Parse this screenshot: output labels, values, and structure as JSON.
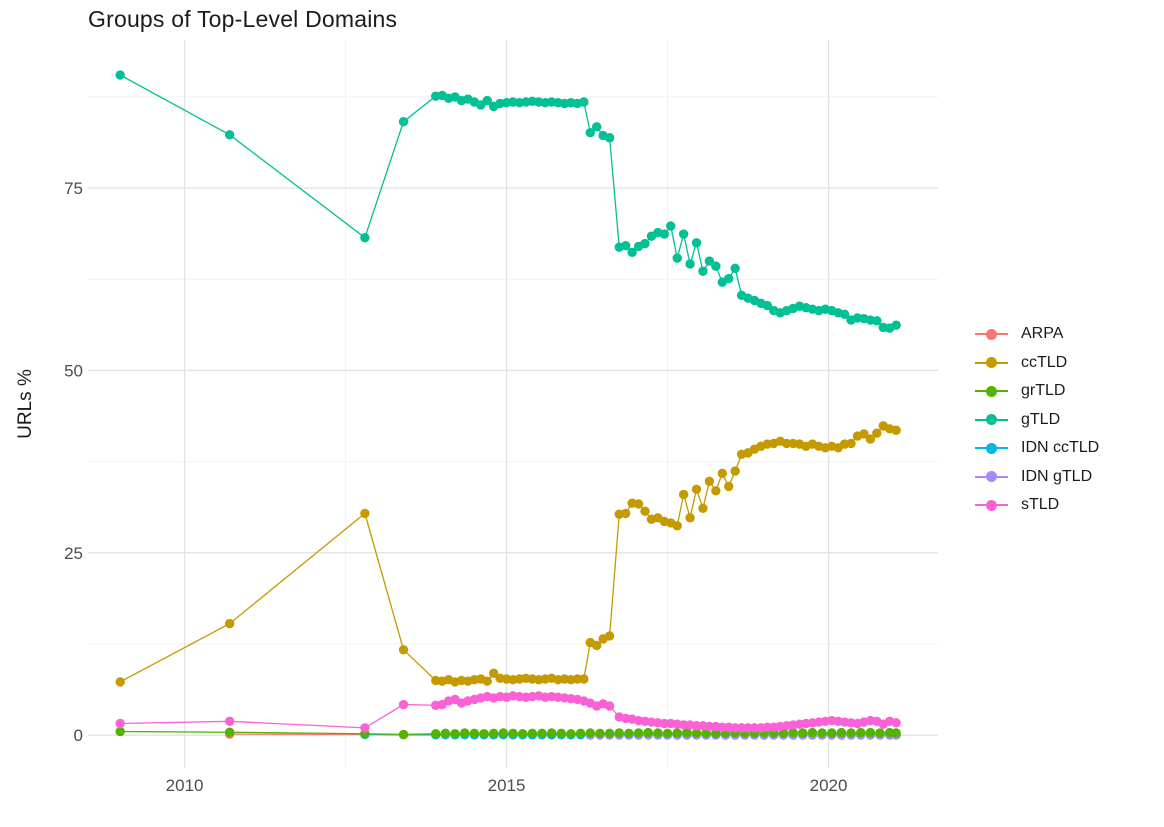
{
  "page": {
    "background": "#ffffff"
  },
  "chart_data": {
    "type": "line",
    "title": "Groups of Top-Level Domains",
    "xlabel": "",
    "ylabel": "URLs %",
    "xlim": [
      2008.5,
      2021.7
    ],
    "ylim": [
      -4.5,
      95.3
    ],
    "grid": true,
    "legend_position": "right",
    "colors": {
      "grid_major": "#e3e3e3",
      "grid_minor": "#f1f1f1",
      "tick_text": "#4d4d4d",
      "text": "#1b1b1b",
      "background": "#ffffff"
    },
    "x_ticks": {
      "values": [
        2010,
        2015,
        2020
      ],
      "labels": [
        "2010",
        "2015",
        "2020"
      ],
      "minor": [
        2012.5,
        2017.5
      ]
    },
    "y_ticks": {
      "values": [
        0,
        25,
        50,
        75
      ],
      "labels": [
        "0",
        "25",
        "50",
        "75"
      ],
      "minor": [
        12.5,
        37.5,
        62.5,
        87.5
      ]
    },
    "series": [
      {
        "name": "ARPA",
        "color": "#F8766D",
        "x": [
          2010.7,
          2012.8,
          2013.4,
          2013.9,
          2014.2,
          2014.5,
          2014.8,
          2015.1,
          2015.4,
          2015.7,
          2016.0,
          2016.3,
          2016.6,
          2016.9,
          2017.2,
          2017.5,
          2017.8,
          2018.1,
          2018.4,
          2018.7,
          2019.0,
          2019.3,
          2019.6,
          2019.9,
          2020.2,
          2020.5,
          2020.8,
          2021.05
        ],
        "y": [
          0.15,
          0.1,
          0.05,
          0.05,
          0.05,
          0.05,
          0.05,
          0.05,
          0.05,
          0.05,
          0.05,
          0.05,
          0.05,
          0.05,
          0.05,
          0.05,
          0.05,
          0.05,
          0.05,
          0.05,
          0.05,
          0.05,
          0.05,
          0.05,
          0.05,
          0.05,
          0.05,
          0.05
        ]
      },
      {
        "name": "ccTLD",
        "color": "#C49A00",
        "x": [
          2009,
          2010.7,
          2012.8,
          2013.4,
          2013.9,
          2014.0,
          2014.1,
          2014.2,
          2014.3,
          2014.4,
          2014.5,
          2014.6,
          2014.7,
          2014.8,
          2014.9,
          2015.0,
          2015.1,
          2015.2,
          2015.3,
          2015.4,
          2015.5,
          2015.6,
          2015.7,
          2015.8,
          2015.9,
          2016.0,
          2016.1,
          2016.2,
          2016.3,
          2016.4,
          2016.5,
          2016.6,
          2016.75,
          2016.85,
          2016.95,
          2017.05,
          2017.15,
          2017.25,
          2017.35,
          2017.45,
          2017.55,
          2017.65,
          2017.75,
          2017.85,
          2017.95,
          2018.05,
          2018.15,
          2018.25,
          2018.35,
          2018.45,
          2018.55,
          2018.65,
          2018.75,
          2018.85,
          2018.95,
          2019.05,
          2019.15,
          2019.25,
          2019.35,
          2019.45,
          2019.55,
          2019.65,
          2019.75,
          2019.85,
          2019.95,
          2020.05,
          2020.15,
          2020.25,
          2020.35,
          2020.45,
          2020.55,
          2020.65,
          2020.75,
          2020.85,
          2020.95,
          2021.05
        ],
        "y": [
          7.3,
          15.3,
          30.4,
          11.7,
          7.5,
          7.4,
          7.6,
          7.3,
          7.5,
          7.4,
          7.6,
          7.7,
          7.4,
          8.5,
          7.8,
          7.7,
          7.6,
          7.7,
          7.8,
          7.7,
          7.6,
          7.7,
          7.8,
          7.6,
          7.7,
          7.6,
          7.7,
          7.7,
          12.7,
          12.3,
          13.2,
          13.6,
          30.3,
          30.4,
          31.8,
          31.7,
          30.7,
          29.6,
          29.8,
          29.3,
          29.1,
          28.7,
          33.0,
          29.8,
          33.7,
          31.1,
          34.8,
          33.5,
          35.9,
          34.1,
          36.2,
          38.5,
          38.7,
          39.2,
          39.6,
          39.9,
          40.0,
          40.3,
          40.0,
          40.0,
          39.9,
          39.6,
          39.9,
          39.6,
          39.4,
          39.6,
          39.4,
          39.9,
          40.0,
          41.0,
          41.3,
          40.6,
          41.4,
          42.4,
          42.0,
          41.8
        ]
      },
      {
        "name": "grTLD",
        "color": "#53B400",
        "x": [
          2009,
          2010.7,
          2012.8,
          2013.4,
          2013.9,
          2014.05,
          2014.2,
          2014.35,
          2014.5,
          2014.65,
          2014.8,
          2014.95,
          2015.1,
          2015.25,
          2015.4,
          2015.55,
          2015.7,
          2015.85,
          2016.0,
          2016.15,
          2016.3,
          2016.45,
          2016.6,
          2016.75,
          2016.9,
          2017.05,
          2017.2,
          2017.35,
          2017.5,
          2017.65,
          2017.8,
          2017.95,
          2018.1,
          2018.25,
          2018.4,
          2018.55,
          2018.7,
          2018.85,
          2019.0,
          2019.15,
          2019.3,
          2019.45,
          2019.6,
          2019.75,
          2019.9,
          2020.05,
          2020.2,
          2020.35,
          2020.5,
          2020.65,
          2020.8,
          2020.95,
          2021.05
        ],
        "y": [
          0.5,
          0.4,
          0.2,
          0.1,
          0.2,
          0.25,
          0.2,
          0.3,
          0.25,
          0.2,
          0.25,
          0.3,
          0.25,
          0.2,
          0.25,
          0.25,
          0.3,
          0.25,
          0.2,
          0.25,
          0.3,
          0.25,
          0.25,
          0.3,
          0.25,
          0.3,
          0.35,
          0.3,
          0.25,
          0.3,
          0.35,
          0.3,
          0.3,
          0.25,
          0.3,
          0.35,
          0.3,
          0.3,
          0.35,
          0.3,
          0.3,
          0.35,
          0.3,
          0.35,
          0.3,
          0.3,
          0.35,
          0.3,
          0.35,
          0.35,
          0.3,
          0.35,
          0.3
        ]
      },
      {
        "name": "gTLD",
        "color": "#00C094",
        "x": [
          2009,
          2010.7,
          2012.8,
          2013.4,
          2013.9,
          2014.0,
          2014.1,
          2014.2,
          2014.3,
          2014.4,
          2014.5,
          2014.6,
          2014.7,
          2014.8,
          2014.9,
          2015.0,
          2015.1,
          2015.2,
          2015.3,
          2015.4,
          2015.5,
          2015.6,
          2015.7,
          2015.8,
          2015.9,
          2016.0,
          2016.1,
          2016.2,
          2016.3,
          2016.4,
          2016.5,
          2016.6,
          2016.75,
          2016.85,
          2016.95,
          2017.05,
          2017.15,
          2017.25,
          2017.35,
          2017.45,
          2017.55,
          2017.65,
          2017.75,
          2017.85,
          2017.95,
          2018.05,
          2018.15,
          2018.25,
          2018.35,
          2018.45,
          2018.55,
          2018.65,
          2018.75,
          2018.85,
          2018.95,
          2019.05,
          2019.15,
          2019.25,
          2019.35,
          2019.45,
          2019.55,
          2019.65,
          2019.75,
          2019.85,
          2019.95,
          2020.05,
          2020.15,
          2020.25,
          2020.35,
          2020.45,
          2020.55,
          2020.65,
          2020.75,
          2020.85,
          2020.95,
          2021.05
        ],
        "y": [
          90.5,
          82.3,
          68.2,
          84.1,
          87.6,
          87.7,
          87.3,
          87.5,
          87.0,
          87.2,
          86.8,
          86.4,
          87.0,
          86.2,
          86.6,
          86.7,
          86.8,
          86.7,
          86.8,
          86.9,
          86.8,
          86.7,
          86.8,
          86.7,
          86.6,
          86.7,
          86.6,
          86.8,
          82.6,
          83.4,
          82.2,
          81.9,
          66.9,
          67.1,
          66.2,
          67.0,
          67.4,
          68.4,
          68.9,
          68.7,
          69.8,
          65.4,
          68.7,
          64.6,
          67.5,
          63.6,
          65.0,
          64.3,
          62.1,
          62.6,
          64.0,
          60.3,
          59.9,
          59.6,
          59.2,
          58.9,
          58.2,
          57.9,
          58.2,
          58.5,
          58.8,
          58.6,
          58.4,
          58.2,
          58.4,
          58.2,
          57.9,
          57.7,
          56.9,
          57.2,
          57.1,
          56.9,
          56.8,
          55.9,
          55.8,
          56.2
        ]
      },
      {
        "name": "IDN ccTLD",
        "color": "#00B6EB",
        "x": [
          2012.8,
          2013.9,
          2014.05,
          2014.2,
          2014.35,
          2014.5,
          2014.65,
          2014.8,
          2014.95,
          2015.1,
          2015.25,
          2015.4,
          2015.55,
          2015.7,
          2015.85,
          2016.0,
          2016.15,
          2016.3,
          2016.45,
          2016.6,
          2016.75,
          2016.9,
          2017.05,
          2017.2,
          2017.35,
          2017.5,
          2017.65,
          2017.8,
          2017.95,
          2018.1,
          2018.25,
          2018.4,
          2018.55,
          2018.7,
          2018.85,
          2019.0,
          2019.15,
          2019.3,
          2019.45,
          2019.6,
          2019.75,
          2019.9,
          2020.05,
          2020.2,
          2020.35,
          2020.5,
          2020.65,
          2020.8,
          2020.95,
          2021.05
        ],
        "y": [
          0.1,
          0.05,
          0.05,
          0.05,
          0.05,
          0.05,
          0.05,
          0.05,
          0.05,
          0.05,
          0.05,
          0.05,
          0.05,
          0.05,
          0.05,
          0.05,
          0.05,
          0.05,
          0.05,
          0.05,
          0.05,
          0.05,
          0.05,
          0.05,
          0.05,
          0.05,
          0.05,
          0.05,
          0.05,
          0.05,
          0.05,
          0.05,
          0.05,
          0.05,
          0.05,
          0.05,
          0.05,
          0.05,
          0.05,
          0.05,
          0.05,
          0.05,
          0.05,
          0.05,
          0.05,
          0.05,
          0.05,
          0.05,
          0.05,
          0.05
        ]
      },
      {
        "name": "IDN gTLD",
        "color": "#A58AFF",
        "x": [
          2016.3,
          2016.45,
          2016.6,
          2016.75,
          2016.9,
          2017.05,
          2017.2,
          2017.35,
          2017.5,
          2017.65,
          2017.8,
          2017.95,
          2018.1,
          2018.25,
          2018.4,
          2018.55,
          2018.7,
          2018.85,
          2019.0,
          2019.15,
          2019.3,
          2019.45,
          2019.6,
          2019.75,
          2019.9,
          2020.05,
          2020.2,
          2020.35,
          2020.5,
          2020.65,
          2020.8,
          2020.95,
          2021.05
        ],
        "y": [
          0.02,
          0.02,
          0.02,
          0.02,
          0.02,
          0.02,
          0.02,
          0.02,
          0.02,
          0.02,
          0.02,
          0.02,
          0.02,
          0.02,
          0.02,
          0.02,
          0.02,
          0.02,
          0.02,
          0.02,
          0.02,
          0.02,
          0.02,
          0.02,
          0.02,
          0.02,
          0.02,
          0.02,
          0.02,
          0.02,
          0.02,
          0.02,
          0.02
        ]
      },
      {
        "name": "sTLD",
        "color": "#FB61D7",
        "x": [
          2009,
          2010.7,
          2012.8,
          2013.4,
          2013.9,
          2014.0,
          2014.1,
          2014.2,
          2014.3,
          2014.4,
          2014.5,
          2014.6,
          2014.7,
          2014.8,
          2014.9,
          2015.0,
          2015.1,
          2015.2,
          2015.3,
          2015.4,
          2015.5,
          2015.6,
          2015.7,
          2015.8,
          2015.9,
          2016.0,
          2016.1,
          2016.2,
          2016.3,
          2016.4,
          2016.5,
          2016.6,
          2016.75,
          2016.85,
          2016.95,
          2017.05,
          2017.15,
          2017.25,
          2017.35,
          2017.45,
          2017.55,
          2017.65,
          2017.75,
          2017.85,
          2017.95,
          2018.05,
          2018.15,
          2018.25,
          2018.35,
          2018.45,
          2018.55,
          2018.65,
          2018.75,
          2018.85,
          2018.95,
          2019.05,
          2019.15,
          2019.25,
          2019.35,
          2019.45,
          2019.55,
          2019.65,
          2019.75,
          2019.85,
          2019.95,
          2020.05,
          2020.15,
          2020.25,
          2020.35,
          2020.45,
          2020.55,
          2020.65,
          2020.75,
          2020.85,
          2020.95,
          2021.05
        ],
        "y": [
          1.6,
          1.9,
          1.0,
          4.2,
          4.1,
          4.2,
          4.7,
          4.9,
          4.4,
          4.7,
          4.9,
          5.1,
          5.3,
          5.1,
          5.3,
          5.2,
          5.4,
          5.3,
          5.2,
          5.3,
          5.4,
          5.2,
          5.3,
          5.2,
          5.1,
          5.0,
          4.9,
          4.7,
          4.4,
          4.0,
          4.3,
          4.0,
          2.5,
          2.3,
          2.2,
          2.0,
          1.9,
          1.8,
          1.7,
          1.6,
          1.6,
          1.5,
          1.4,
          1.4,
          1.3,
          1.3,
          1.2,
          1.2,
          1.1,
          1.1,
          1.0,
          1.0,
          1.0,
          1.0,
          1.0,
          1.1,
          1.1,
          1.2,
          1.3,
          1.4,
          1.5,
          1.6,
          1.7,
          1.8,
          1.9,
          2.0,
          1.9,
          1.8,
          1.7,
          1.6,
          1.8,
          2.0,
          1.9,
          1.5,
          1.9,
          1.7
        ]
      }
    ]
  }
}
